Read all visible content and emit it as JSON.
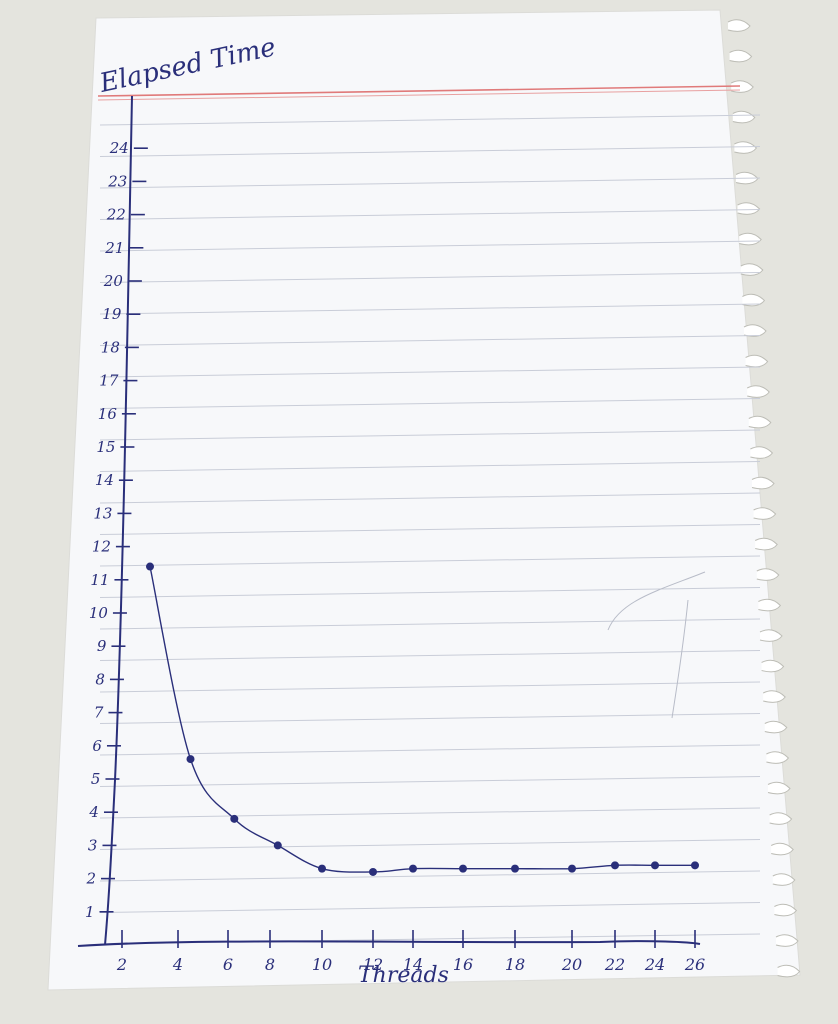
{
  "chart_data": {
    "type": "line",
    "title": "Elapsed Time",
    "xlabel": "Threads",
    "ylabel": "Elapsed Time",
    "x_ticks": [
      "2",
      "4",
      "6",
      "8",
      "10",
      "12",
      "14",
      "16",
      "18",
      "20",
      "22",
      "24",
      "26"
    ],
    "y_ticks": [
      "1",
      "2",
      "3",
      "4",
      "5",
      "6",
      "7",
      "8",
      "9",
      "10",
      "11",
      "12",
      "13",
      "14",
      "15",
      "16",
      "17",
      "18",
      "19",
      "20",
      "21",
      "22",
      "23",
      "24"
    ],
    "xlim": [
      0,
      26
    ],
    "ylim": [
      0,
      25
    ],
    "grid": false,
    "series": [
      {
        "x": [
          3,
          4.5,
          6.3,
          8.3,
          10,
          12,
          14,
          16,
          18,
          20,
          22,
          24,
          26
        ],
        "y": [
          11.4,
          5.6,
          3.8,
          3.0,
          2.3,
          2.2,
          2.3,
          2.3,
          2.3,
          2.3,
          2.4,
          2.4,
          2.4
        ]
      }
    ],
    "colors": {
      "ink": "#2a2f7a",
      "paper": "#f7f8fa",
      "rule": "#c9cdd8",
      "margin": "#e07a7a"
    }
  }
}
